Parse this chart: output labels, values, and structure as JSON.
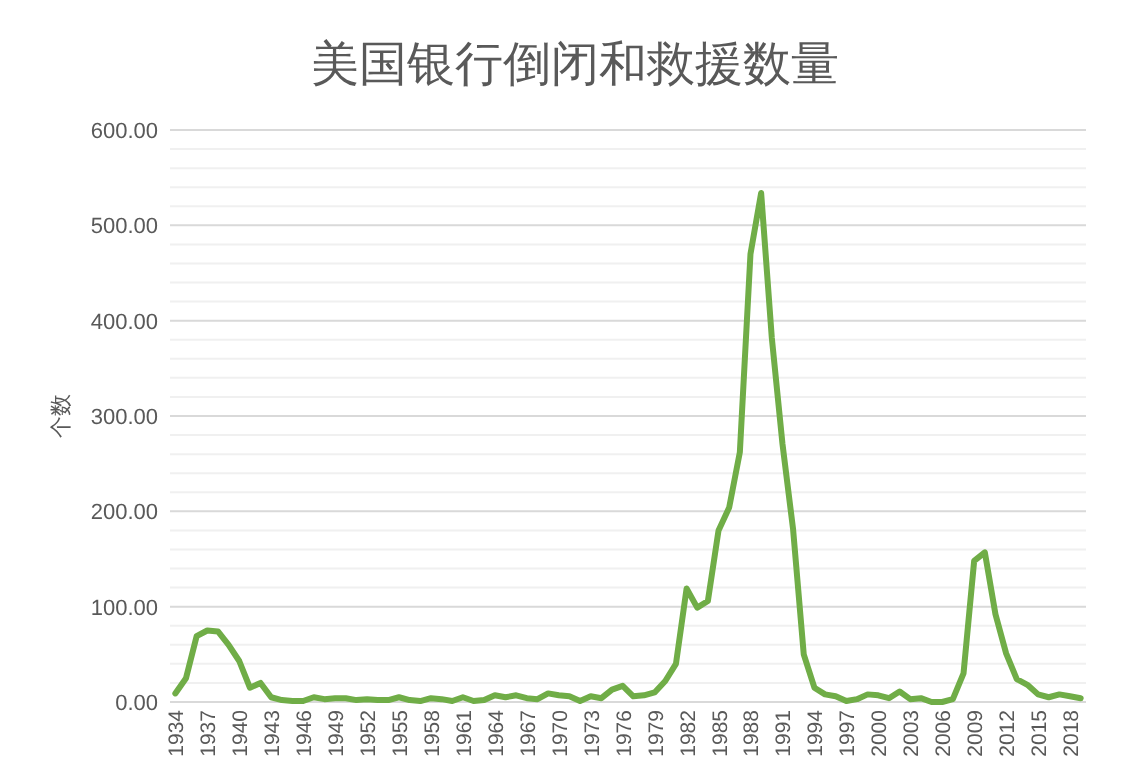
{
  "chart_data": {
    "type": "line",
    "title": "美国银行倒闭和救援数量",
    "ylabel": "个数",
    "categories": [
      "1934",
      null,
      null,
      "1937",
      null,
      null,
      "1940",
      null,
      null,
      "1943",
      null,
      null,
      "1946",
      null,
      null,
      "1949",
      null,
      null,
      "1952",
      null,
      null,
      "1955",
      null,
      null,
      "1958",
      null,
      null,
      "1961",
      null,
      null,
      "1964",
      null,
      null,
      "1967",
      null,
      null,
      "1970",
      null,
      null,
      "1973",
      null,
      null,
      "1976",
      null,
      null,
      "1979",
      null,
      null,
      "1982",
      null,
      null,
      "1985",
      null,
      null,
      "1988",
      null,
      null,
      "1991",
      null,
      null,
      "1994",
      null,
      null,
      "1997",
      null,
      null,
      "2000",
      null,
      null,
      "2003",
      null,
      null,
      "2006",
      null,
      null,
      "2009",
      null,
      null,
      "2012",
      null,
      null,
      "2015",
      null,
      null,
      "2018",
      null
    ],
    "series": [
      {
        "color": "#70ad47",
        "values": [
          9,
          25,
          69,
          75,
          74,
          60,
          43,
          15,
          20,
          5,
          2,
          1,
          1,
          5,
          3,
          4,
          4,
          2,
          3,
          2,
          2,
          5,
          2,
          1,
          4,
          3,
          1,
          5,
          1,
          2,
          7,
          5,
          7,
          4,
          3,
          9,
          7,
          6,
          1,
          6,
          4,
          13,
          17,
          6,
          7,
          10,
          22,
          40,
          119,
          99,
          106,
          180,
          204,
          262,
          470,
          534,
          382,
          271,
          181,
          50,
          15,
          8,
          6,
          1,
          3,
          8,
          7,
          4,
          11,
          3,
          4,
          0,
          0,
          3,
          30,
          148,
          157,
          92,
          51,
          24,
          18,
          8,
          5,
          8,
          6,
          4
        ]
      }
    ],
    "ylim": [
      0,
      600
    ],
    "yticks": [
      {
        "value": 0,
        "label": "0.00"
      },
      {
        "value": 20,
        "label": null
      },
      {
        "value": 40,
        "label": null
      },
      {
        "value": 60,
        "label": null
      },
      {
        "value": 80,
        "label": null
      },
      {
        "value": 100,
        "label": "100.00"
      },
      {
        "value": 120,
        "label": null
      },
      {
        "value": 140,
        "label": null
      },
      {
        "value": 160,
        "label": null
      },
      {
        "value": 180,
        "label": null
      },
      {
        "value": 200,
        "label": "200.00"
      },
      {
        "value": 220,
        "label": null
      },
      {
        "value": 240,
        "label": null
      },
      {
        "value": 260,
        "label": null
      },
      {
        "value": 280,
        "label": null
      },
      {
        "value": 300,
        "label": "300.00"
      },
      {
        "value": 320,
        "label": null
      },
      {
        "value": 340,
        "label": null
      },
      {
        "value": 360,
        "label": null
      },
      {
        "value": 380,
        "label": null
      },
      {
        "value": 400,
        "label": "400.00"
      },
      {
        "value": 420,
        "label": null
      },
      {
        "value": 440,
        "label": null
      },
      {
        "value": 460,
        "label": null
      },
      {
        "value": 480,
        "label": null
      },
      {
        "value": 500,
        "label": "500.00"
      },
      {
        "value": 520,
        "label": null
      },
      {
        "value": 540,
        "label": null
      },
      {
        "value": 560,
        "label": null
      },
      {
        "value": 580,
        "label": null
      },
      {
        "value": 600,
        "label": "600.00"
      }
    ],
    "grid": "y",
    "marker": "none",
    "line_style": "solid"
  }
}
